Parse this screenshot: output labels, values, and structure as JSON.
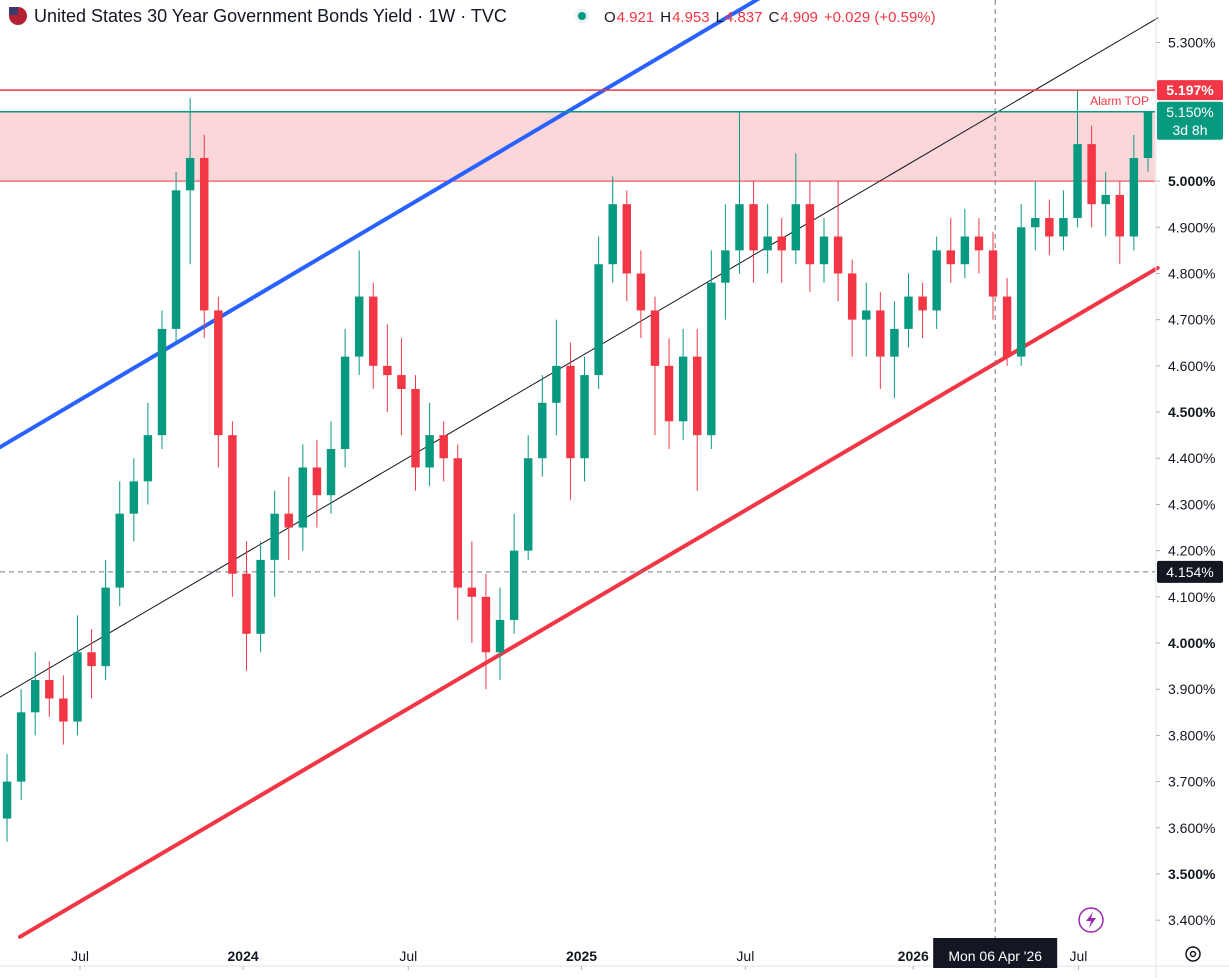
{
  "chart_data": {
    "type": "candlestick",
    "title": "United States 30 Year Government Bonds Yield · 1W · TVC",
    "header": [
      {
        "label": "O",
        "value": 4.921
      },
      {
        "label": "H",
        "value": 4.953
      },
      {
        "label": "L",
        "value": 4.837
      },
      {
        "label": "C",
        "value": 4.909
      }
    ],
    "change": "+0.029 (+0.59%)",
    "up_color": "#089981",
    "down_color": "#f23645",
    "open": [
      3.62,
      3.7,
      3.85,
      3.92,
      3.88,
      3.83,
      3.98,
      3.95,
      4.12,
      4.28,
      4.35,
      4.45,
      4.68,
      4.98,
      5.05,
      4.72,
      4.45,
      4.15,
      4.02,
      4.18,
      4.28,
      4.25,
      4.38,
      4.32,
      4.42,
      4.62,
      4.75,
      4.6,
      4.58,
      4.55,
      4.38,
      4.45,
      4.4,
      4.12,
      4.1,
      3.98,
      4.05,
      4.2,
      4.4,
      4.52,
      4.6,
      4.4,
      4.58,
      4.82,
      4.95,
      4.8,
      4.72,
      4.6,
      4.48,
      4.62,
      4.45,
      4.78,
      4.85,
      4.95,
      4.85,
      4.88,
      4.85,
      4.95,
      4.82,
      4.88,
      4.8,
      4.7,
      4.72,
      4.62,
      4.68,
      4.75,
      4.72,
      4.85,
      4.82,
      4.88,
      4.85,
      4.75,
      4.62,
      4.9,
      4.92,
      4.88,
      4.92,
      5.08,
      4.95,
      4.97,
      4.88,
      5.05
    ],
    "high": [
      3.76,
      3.9,
      3.98,
      3.96,
      3.93,
      4.06,
      4.03,
      4.18,
      4.35,
      4.4,
      4.52,
      4.72,
      5.02,
      5.18,
      5.1,
      4.75,
      4.48,
      4.22,
      4.22,
      4.33,
      4.36,
      4.43,
      4.44,
      4.48,
      4.68,
      4.85,
      4.78,
      4.69,
      4.66,
      4.58,
      4.52,
      4.48,
      4.43,
      4.22,
      4.15,
      4.12,
      4.28,
      4.45,
      4.58,
      4.7,
      4.65,
      4.62,
      4.88,
      5.01,
      4.98,
      4.85,
      4.75,
      4.66,
      4.68,
      4.68,
      4.85,
      4.95,
      5.15,
      5.0,
      4.95,
      4.92,
      5.06,
      5.0,
      4.92,
      5.0,
      4.83,
      4.78,
      4.76,
      4.74,
      4.8,
      4.78,
      4.88,
      4.92,
      4.94,
      4.92,
      4.89,
      4.79,
      4.95,
      5.0,
      4.96,
      4.98,
      5.197,
      5.12,
      5.02,
      5.0,
      5.1,
      5.15
    ],
    "low": [
      3.57,
      3.66,
      3.8,
      3.84,
      3.78,
      3.8,
      3.88,
      3.92,
      4.08,
      4.22,
      4.3,
      4.42,
      4.65,
      4.82,
      4.66,
      4.38,
      4.1,
      3.94,
      3.98,
      4.1,
      4.18,
      4.2,
      4.25,
      4.28,
      4.38,
      4.58,
      4.55,
      4.5,
      4.45,
      4.33,
      4.34,
      4.35,
      4.05,
      4.0,
      3.9,
      3.92,
      4.02,
      4.18,
      4.36,
      4.45,
      4.31,
      4.35,
      4.55,
      4.78,
      4.74,
      4.66,
      4.45,
      4.42,
      4.44,
      4.33,
      4.42,
      4.7,
      4.8,
      4.78,
      4.8,
      4.78,
      4.82,
      4.76,
      4.78,
      4.74,
      4.62,
      4.62,
      4.55,
      4.53,
      4.64,
      4.66,
      4.68,
      4.78,
      4.79,
      4.8,
      4.7,
      4.6,
      4.6,
      4.85,
      4.84,
      4.85,
      4.9,
      4.9,
      4.88,
      4.82,
      4.85,
      5.02
    ],
    "close": [
      3.7,
      3.85,
      3.92,
      3.88,
      3.83,
      3.98,
      3.95,
      4.12,
      4.28,
      4.35,
      4.45,
      4.68,
      4.98,
      5.05,
      4.72,
      4.45,
      4.15,
      4.02,
      4.18,
      4.28,
      4.25,
      4.38,
      4.32,
      4.42,
      4.62,
      4.75,
      4.6,
      4.58,
      4.55,
      4.38,
      4.45,
      4.4,
      4.12,
      4.1,
      3.98,
      4.05,
      4.2,
      4.4,
      4.52,
      4.6,
      4.4,
      4.58,
      4.82,
      4.95,
      4.8,
      4.72,
      4.6,
      4.48,
      4.62,
      4.45,
      4.78,
      4.85,
      4.95,
      4.85,
      4.88,
      4.85,
      4.95,
      4.82,
      4.88,
      4.8,
      4.7,
      4.72,
      4.62,
      4.68,
      4.75,
      4.72,
      4.85,
      4.82,
      4.88,
      4.85,
      4.75,
      4.62,
      4.9,
      4.92,
      4.88,
      4.92,
      5.08,
      4.95,
      4.97,
      4.88,
      5.05,
      5.15
    ],
    "xlim": [
      0,
      86
    ],
    "xticks": [
      {
        "value": 5.96,
        "label": "Jul"
      },
      {
        "value": 18.1,
        "label": "2024"
      },
      {
        "value": 30.4,
        "label": "Jul"
      },
      {
        "value": 43.3,
        "label": "2025"
      },
      {
        "value": 55.5,
        "label": "Jul"
      },
      {
        "value": 68.0,
        "label": "2026"
      },
      {
        "value": 80.3,
        "label": "Jul"
      }
    ],
    "ylim": [
      3.303,
      5.392
    ],
    "yticks": [
      {
        "value": 3.4,
        "label": "3.400%"
      },
      {
        "value": 3.5,
        "label": "3.500%"
      },
      {
        "value": 3.6,
        "label": "3.600%"
      },
      {
        "value": 3.7,
        "label": "3.700%"
      },
      {
        "value": 3.8,
        "label": "3.800%"
      },
      {
        "value": 3.9,
        "label": "3.900%"
      },
      {
        "value": 4.0,
        "label": "4.000%"
      },
      {
        "value": 4.1,
        "label": "4.100%"
      },
      {
        "value": 4.2,
        "label": "4.200%"
      },
      {
        "value": 4.3,
        "label": "4.300%"
      },
      {
        "value": 4.4,
        "label": "4.400%"
      },
      {
        "value": 4.5,
        "label": "4.500%"
      },
      {
        "value": 4.6,
        "label": "4.600%"
      },
      {
        "value": 4.7,
        "label": "4.700%"
      },
      {
        "value": 4.8,
        "label": "4.800%"
      },
      {
        "value": 4.9,
        "label": "4.900%"
      },
      {
        "value": 5.0,
        "label": "5.000%"
      },
      {
        "value": 5.3,
        "label": "5.300%"
      }
    ],
    "zone": {
      "from": 5.0,
      "to": 5.15,
      "color": "#f23645"
    },
    "levels": [
      {
        "value": 5.197,
        "label": "5.197%",
        "color": "#f23645"
      },
      {
        "value": 5.15,
        "label": "5.150%",
        "sublabel": "3d 8h",
        "color": "#089981"
      }
    ],
    "alarm_text": "Alarm TOP",
    "trendlines": [
      {
        "color": "#2962ff",
        "x": [
          0,
          56.96
        ],
        "y": [
          4.424,
          5.403
        ]
      },
      {
        "color": "#f23645",
        "x": [
          1.49,
          86.2
        ],
        "y": [
          3.364,
          4.812
        ]
      },
      {
        "color": "#131722",
        "x": [
          0,
          86.2
        ],
        "y": [
          3.883,
          5.353
        ]
      }
    ],
    "crosshair": {
      "x": 74.1,
      "x_label": "Mon 06 Apr '26",
      "y": 4.154,
      "y_label": "4.154%"
    }
  }
}
